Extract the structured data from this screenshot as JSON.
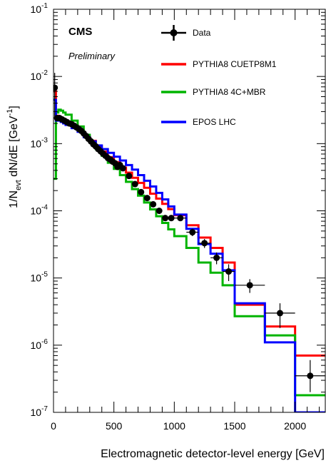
{
  "chart_data": {
    "type": "line",
    "experiment_label": "CMS",
    "status_label": "Preliminary",
    "xlabel": "Electromagnetic detector-level energy [GeV]",
    "ylabel_parts": [
      "1/N",
      "evt",
      " dN/dE [GeV",
      "-1",
      "]"
    ],
    "xlim": [
      0,
      2250
    ],
    "ylim": [
      1e-07,
      0.1
    ],
    "yscale": "log",
    "x_ticks": [
      {
        "value": 0,
        "label": "0"
      },
      {
        "value": 500,
        "label": "500"
      },
      {
        "value": 1000,
        "label": "1000"
      },
      {
        "value": 1500,
        "label": "1500"
      },
      {
        "value": 2000,
        "label": "2000"
      }
    ],
    "y_ticks": [
      {
        "value": 1e-07,
        "base": "10",
        "exp": "-7"
      },
      {
        "value": 1e-06,
        "base": "10",
        "exp": "-6"
      },
      {
        "value": 1e-05,
        "base": "10",
        "exp": "-5"
      },
      {
        "value": 0.0001,
        "base": "10",
        "exp": "-4"
      },
      {
        "value": 0.001,
        "base": "10",
        "exp": "-3"
      },
      {
        "value": 0.01,
        "base": "10",
        "exp": "-2"
      },
      {
        "value": 0.1,
        "base": "10",
        "exp": "-1"
      }
    ],
    "legend_placement": "top-right",
    "series": [
      {
        "name": "PYTHIA8 CUETP8M1",
        "color": "#ff0000",
        "kind": "step",
        "edges": [
          0,
          20,
          40,
          60,
          80,
          100,
          150,
          200,
          250,
          300,
          350,
          400,
          450,
          500,
          550,
          600,
          650,
          700,
          750,
          800,
          850,
          900,
          950,
          1000,
          1100,
          1200,
          1300,
          1400,
          1500,
          1750,
          2000,
          2250
        ],
        "values": [
          0.006,
          0.0026,
          0.0025,
          0.0024,
          0.0023,
          0.0021,
          0.0019,
          0.0016,
          0.0013,
          0.0011,
          0.00092,
          0.00076,
          0.00063,
          0.00053,
          0.00044,
          0.00037,
          0.00031,
          0.00026,
          0.00022,
          0.00018,
          0.000152,
          0.000127,
          0.000106,
          8.6e-05,
          6.1e-05,
          4e-05,
          2.8e-05,
          1.7e-05,
          4e-06,
          1.9e-06,
          7e-07
        ]
      },
      {
        "name": "PYTHIA8 4C+MBR",
        "color": "#00b400",
        "kind": "step",
        "edges": [
          0,
          20,
          40,
          60,
          80,
          100,
          150,
          200,
          250,
          300,
          350,
          400,
          450,
          500,
          550,
          600,
          650,
          700,
          750,
          800,
          850,
          900,
          950,
          1000,
          1100,
          1200,
          1300,
          1400,
          1500,
          1750,
          2000,
          2250
        ],
        "values": [
          0.0003,
          0.0029,
          0.0032,
          0.0031,
          0.0029,
          0.0027,
          0.0022,
          0.0018,
          0.00135,
          0.00105,
          0.00083,
          0.00066,
          0.00052,
          0.00042,
          0.00034,
          0.00027,
          0.00021,
          0.000168,
          0.000133,
          0.000105,
          8.3e-05,
          6.6e-05,
          5.3e-05,
          4.2e-05,
          2.8e-05,
          1.7e-05,
          1.2e-05,
          7.8e-06,
          2.7e-06,
          1.4e-06,
          1.8e-07
        ]
      },
      {
        "name": "EPOS LHC",
        "color": "#0000ff",
        "kind": "step",
        "edges": [
          0,
          20,
          40,
          60,
          80,
          100,
          150,
          200,
          250,
          300,
          350,
          400,
          450,
          500,
          550,
          600,
          650,
          700,
          750,
          800,
          850,
          900,
          950,
          1000,
          1100,
          1200,
          1300,
          1400,
          1500,
          1750,
          2000,
          2250
        ],
        "values": [
          0.0045,
          0.0022,
          0.0022,
          0.0021,
          0.002,
          0.0019,
          0.0017,
          0.0015,
          0.00125,
          0.00108,
          0.00094,
          0.00083,
          0.00073,
          0.00064,
          0.00056,
          0.00048,
          0.00041,
          0.00034,
          0.00028,
          0.00023,
          0.000185,
          0.000148,
          0.000116,
          8.8e-05,
          5.4e-05,
          3.2e-05,
          2.3e-05,
          1.3e-05,
          4.2e-06,
          1.1e-06,
          1e-07
        ]
      },
      {
        "name": "Data",
        "color": "#000000",
        "kind": "points",
        "x": [
          10,
          30,
          50,
          70,
          90,
          110,
          130,
          150,
          170,
          190,
          210,
          230,
          250,
          270,
          290,
          310,
          330,
          350,
          370,
          390,
          410,
          430,
          450,
          470,
          490,
          510,
          530,
          550,
          575,
          625,
          675,
          725,
          775,
          825,
          875,
          925,
          975,
          1050,
          1150,
          1250,
          1350,
          1450,
          1625,
          1875,
          2125
        ],
        "y": [
          0.0068,
          0.0024,
          0.0024,
          0.0023,
          0.0022,
          0.0021,
          0.002,
          0.00195,
          0.00185,
          0.00175,
          0.00165,
          0.00155,
          0.00142,
          0.0013,
          0.00118,
          0.00108,
          0.00098,
          0.00091,
          0.00083,
          0.00077,
          0.00071,
          0.00066,
          0.00061,
          0.00058,
          0.00054,
          0.00051,
          0.00045,
          0.00048,
          0.00043,
          0.00033,
          0.00025,
          0.00019,
          0.000155,
          0.000125,
          0.0001,
          7.8e-05,
          7.8e-05,
          7.8e-05,
          4.8e-05,
          3.3e-05,
          2e-05,
          1.25e-05,
          7.8e-06,
          3e-06,
          3.5e-07
        ],
        "xerr": [
          10,
          10,
          10,
          10,
          10,
          10,
          10,
          10,
          10,
          10,
          10,
          10,
          10,
          10,
          10,
          10,
          10,
          10,
          10,
          10,
          10,
          10,
          10,
          10,
          10,
          10,
          10,
          10,
          25,
          25,
          25,
          25,
          25,
          25,
          25,
          25,
          25,
          50,
          50,
          50,
          50,
          50,
          125,
          125,
          125
        ],
        "yerr_low": [
          0.0045,
          0.0002,
          0.0002,
          0.0002,
          0.0002,
          0.0001,
          0.0001,
          0.0001,
          0.0001,
          0.0001,
          0.0001,
          0.0001,
          0.0001,
          0.0001,
          0.0001,
          0.0001,
          0.0001,
          8e-05,
          8e-05,
          8e-05,
          7e-05,
          6e-05,
          6e-05,
          5e-05,
          5e-05,
          5e-05,
          4e-05,
          4e-05,
          4e-05,
          3e-05,
          2e-05,
          2e-05,
          1e-05,
          1e-05,
          1e-05,
          8e-06,
          8e-06,
          8e-06,
          6e-06,
          5e-06,
          4e-06,
          3.5e-06,
          1.8e-06,
          1.2e-06,
          1.5e-07
        ],
        "yerr_high": [
          0.0045,
          0.0002,
          0.0002,
          0.0002,
          0.0002,
          0.0001,
          0.0001,
          0.0001,
          0.0001,
          0.0001,
          0.0001,
          0.0001,
          0.0001,
          0.0001,
          0.0001,
          0.0001,
          0.0001,
          8e-05,
          8e-05,
          8e-05,
          7e-05,
          6e-05,
          6e-05,
          5e-05,
          5e-05,
          5e-05,
          4e-05,
          4e-05,
          4e-05,
          3e-05,
          2e-05,
          2e-05,
          1e-05,
          1e-05,
          1e-05,
          8e-06,
          8e-06,
          8e-06,
          6e-06,
          5e-06,
          4e-06,
          3.5e-06,
          1.8e-06,
          1.2e-06,
          2.5e-07
        ]
      }
    ],
    "legend_order": [
      "Data",
      "PYTHIA8 CUETP8M1",
      "PYTHIA8 4C+MBR",
      "EPOS LHC"
    ]
  }
}
